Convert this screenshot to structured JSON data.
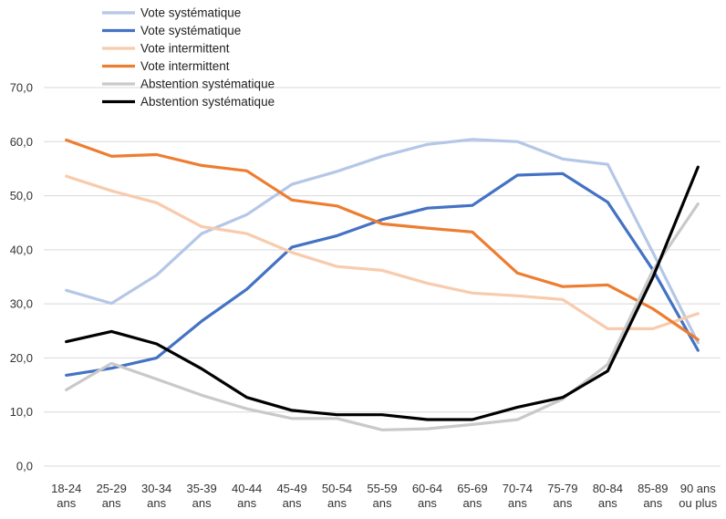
{
  "chart_data": {
    "type": "line",
    "title": "",
    "xlabel": "",
    "ylabel": "",
    "ylim": [
      0,
      70
    ],
    "yticks": [
      "0,0",
      "10,0",
      "20,0",
      "30,0",
      "40,0",
      "50,0",
      "60,0",
      "70,0"
    ],
    "grid": "horizontal",
    "legend_placement": "top-left",
    "categories": [
      [
        "18-24",
        "ans"
      ],
      [
        "25-29",
        "ans"
      ],
      [
        "30-34",
        "ans"
      ],
      [
        "35-39",
        "ans"
      ],
      [
        "40-44",
        "ans"
      ],
      [
        "45-49",
        "ans"
      ],
      [
        "50-54",
        "ans"
      ],
      [
        "55-59",
        "ans"
      ],
      [
        "60-64",
        "ans"
      ],
      [
        "65-69",
        "ans"
      ],
      [
        "70-74",
        "ans"
      ],
      [
        "75-79",
        "ans"
      ],
      [
        "80-84",
        "ans"
      ],
      [
        "85-89",
        "ans"
      ],
      [
        "90 ans",
        "ou plus"
      ]
    ],
    "series": [
      {
        "name": "Vote systématique",
        "color": "#b4c7e7",
        "values": [
          32.5,
          30.1,
          35.3,
          43.0,
          46.5,
          52.1,
          54.5,
          57.3,
          59.5,
          60.4,
          60.0,
          56.8,
          55.8,
          39.5,
          22.8
        ]
      },
      {
        "name": "Vote systématique",
        "color": "#4472c4",
        "values": [
          16.8,
          18.1,
          20.0,
          26.8,
          32.7,
          40.5,
          42.6,
          45.6,
          47.7,
          48.2,
          53.8,
          54.1,
          48.8,
          36.3,
          21.4
        ]
      },
      {
        "name": "Vote intermittent",
        "color": "#f8cbad",
        "values": [
          53.6,
          50.9,
          48.7,
          44.3,
          43.0,
          39.5,
          36.9,
          36.2,
          33.8,
          32.0,
          31.5,
          30.8,
          25.4,
          25.4,
          28.2
        ]
      },
      {
        "name": "Vote intermittent",
        "color": "#ed7d31",
        "values": [
          60.3,
          57.3,
          57.6,
          55.6,
          54.6,
          49.2,
          48.1,
          44.8,
          44.0,
          43.3,
          35.7,
          33.2,
          33.5,
          29.1,
          23.4
        ]
      },
      {
        "name": "Abstention systématique",
        "color": "#c9c9c9",
        "values": [
          14.1,
          19.0,
          16.1,
          13.1,
          10.6,
          8.8,
          8.8,
          6.7,
          6.9,
          7.7,
          8.6,
          12.4,
          18.8,
          36.2,
          48.5
        ]
      },
      {
        "name": "Abstention systématique",
        "color": "#000000",
        "values": [
          23.0,
          24.9,
          22.6,
          18.0,
          12.7,
          10.3,
          9.5,
          9.5,
          8.6,
          8.6,
          10.9,
          12.7,
          17.6,
          34.9,
          55.3
        ]
      }
    ]
  }
}
